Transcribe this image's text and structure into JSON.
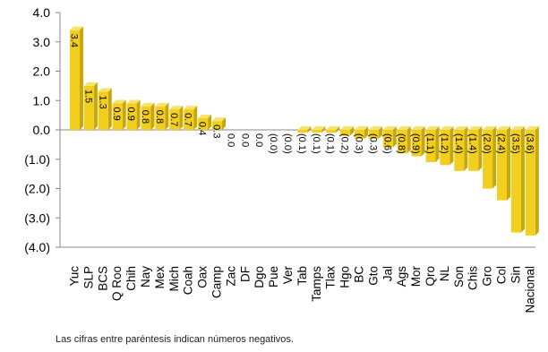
{
  "chart_data": {
    "type": "bar",
    "title": "",
    "xlabel": "",
    "ylabel": "",
    "ylim": [
      -4,
      4
    ],
    "y_ticks": [
      4,
      3,
      2,
      1,
      0,
      -1,
      -2,
      -3,
      -4
    ],
    "y_tick_labels": [
      "4.0",
      "3.0",
      "2.0",
      "1.0",
      "0.0",
      "(1.0)",
      "(2.0)",
      "(3.0)",
      "(4.0)"
    ],
    "grid": false,
    "bar_color": "#f2cf1f",
    "bar_side_color": "#c9a50e",
    "categories": [
      "Yuc",
      "SLP",
      "BCS",
      "Q Roo",
      "Chih",
      "Nay",
      "Mex",
      "Mich",
      "Coah",
      "Oax",
      "Camp",
      "Zac",
      "DF",
      "Dgo",
      "Pue",
      "Ver",
      "Tab",
      "Tamps",
      "Tlax",
      "Hgo",
      "BC",
      "Gto",
      "Jal",
      "Ags",
      "Mor",
      "Qro",
      "NL",
      "Son",
      "Chis",
      "Gro",
      "Col",
      "Sin",
      "Nacional"
    ],
    "values": [
      3.4,
      1.5,
      1.3,
      0.9,
      0.9,
      0.8,
      0.8,
      0.7,
      0.7,
      0.4,
      0.3,
      0.0,
      0.0,
      0.0,
      0.0,
      -0.0,
      -0.1,
      -0.1,
      -0.1,
      -0.2,
      -0.3,
      -0.3,
      -0.6,
      -0.8,
      -0.9,
      -1.1,
      -1.2,
      -1.4,
      -1.4,
      -2.0,
      -2.4,
      -3.5,
      -3.6
    ],
    "value_labels": [
      "3.4",
      "1.5",
      "1.3",
      "0.9",
      "0.9",
      "0.8",
      "0.8",
      "0.7",
      "0.7",
      "0.4",
      "0.3",
      "0.0",
      "0.0",
      "0.0",
      "(0.0)",
      "(0.0)",
      "(0.1)",
      "(0.1)",
      "(0.1)",
      "(0.2)",
      "(0.3)",
      "(0.3)",
      "(0.6)",
      "(0.8)",
      "(0.9)",
      "(1.1)",
      "(1.2)",
      "(1.4)",
      "(1.4)",
      "(2.0)",
      "(2.4)",
      "(3.5)",
      "(3.6)"
    ],
    "note": "Las cifras entre paréntesis indican números negativos."
  }
}
